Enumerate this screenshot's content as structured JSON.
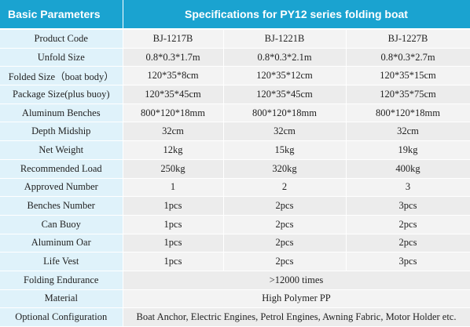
{
  "header": {
    "left": "Basic Parameters",
    "right": "Specifications for PY12 series folding boat"
  },
  "rows": [
    {
      "label": "Product Code",
      "values": [
        "BJ-1217B",
        "BJ-1221B",
        "BJ-1227B"
      ]
    },
    {
      "label": "Unfold Size",
      "values": [
        "0.8*0.3*1.7m",
        "0.8*0.3*2.1m",
        "0.8*0.3*2.7m"
      ]
    },
    {
      "label": "Folded Size（boat body）",
      "values": [
        "120*35*8cm",
        "120*35*12cm",
        "120*35*15cm"
      ]
    },
    {
      "label": "Package Size(plus buoy)",
      "values": [
        "120*35*45cm",
        "120*35*45cm",
        "120*35*75cm"
      ]
    },
    {
      "label": "Aluminum Benches",
      "values": [
        "800*120*18mm",
        "800*120*18mm",
        "800*120*18mm"
      ]
    },
    {
      "label": "Depth Midship",
      "values": [
        "32cm",
        "32cm",
        "32cm"
      ]
    },
    {
      "label": "Net Weight",
      "values": [
        "12kg",
        "15kg",
        "19kg"
      ]
    },
    {
      "label": "Recommended Load",
      "values": [
        "250kg",
        "320kg",
        "400kg"
      ]
    },
    {
      "label": "Approved Number",
      "values": [
        "1",
        "2",
        "3"
      ]
    },
    {
      "label": "Benches Number",
      "values": [
        "1pcs",
        "2pcs",
        "3pcs"
      ]
    },
    {
      "label": "Can Buoy",
      "values": [
        "1pcs",
        "2pcs",
        "2pcs"
      ]
    },
    {
      "label": "Aluminum Oar",
      "values": [
        "1pcs",
        "2pcs",
        "2pcs"
      ]
    },
    {
      "label": "Life Vest",
      "values": [
        "1pcs",
        "2pcs",
        "3pcs"
      ]
    },
    {
      "label": "Folding Endurance",
      "value": ">12000 times"
    },
    {
      "label": "Material",
      "value": "High Polymer PP"
    },
    {
      "label": "Optional Configuration",
      "value": "Boat Anchor, Electric Engines, Petrol Engines, Awning Fabric, Motor Holder etc."
    }
  ]
}
